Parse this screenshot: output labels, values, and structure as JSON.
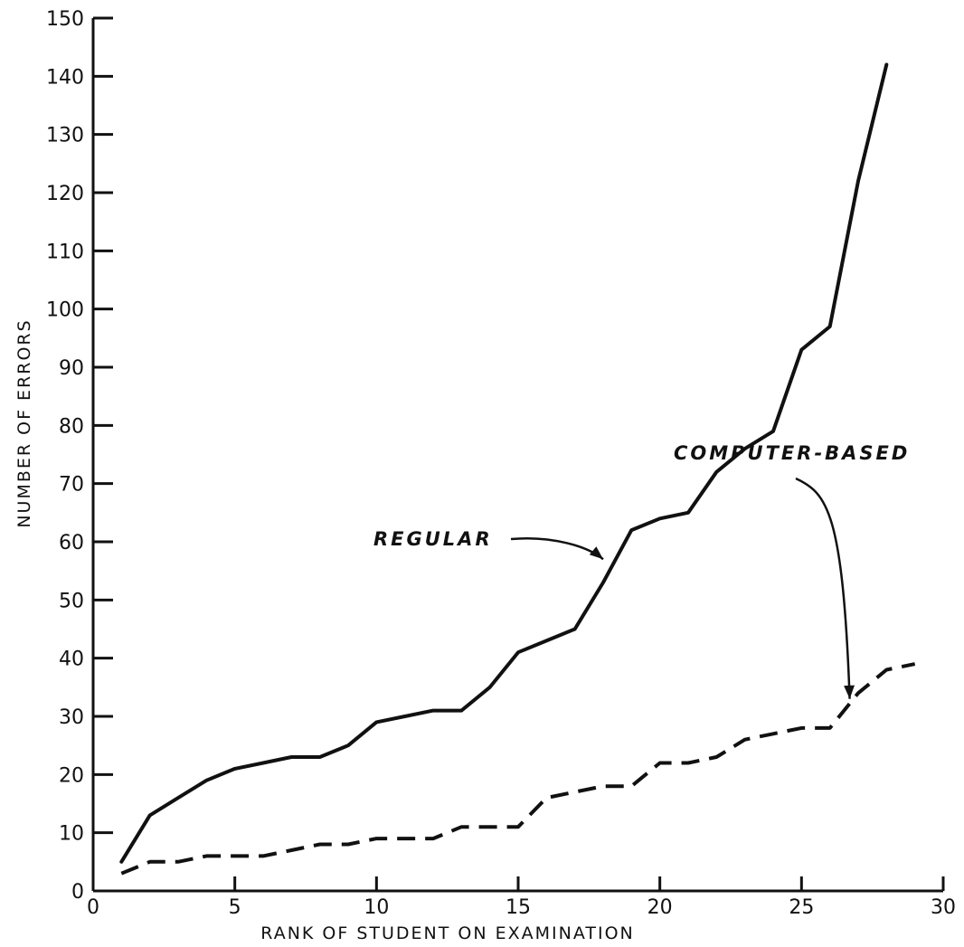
{
  "chart_data": {
    "type": "line",
    "title": "",
    "xlabel": "RANK OF STUDENT ON EXAMINATION",
    "ylabel": "NUMBER OF ERRORS",
    "xlim": [
      0,
      30
    ],
    "ylim": [
      0,
      150
    ],
    "xticks": [
      0,
      5,
      10,
      15,
      20,
      25,
      30
    ],
    "yticks": [
      0,
      10,
      20,
      30,
      40,
      50,
      60,
      70,
      80,
      90,
      100,
      110,
      120,
      130,
      140,
      150
    ],
    "grid": false,
    "legend": "none (series labeled with arrows)",
    "series": [
      {
        "name": "REGULAR",
        "style": "solid",
        "x": [
          1,
          2,
          3,
          4,
          5,
          6,
          7,
          8,
          9,
          10,
          11,
          12,
          13,
          14,
          15,
          16,
          17,
          18,
          19,
          20,
          21,
          22,
          23,
          24,
          25,
          26,
          27,
          28
        ],
        "values": [
          5,
          13,
          16,
          19,
          21,
          22,
          23,
          23,
          25,
          29,
          30,
          31,
          31,
          35,
          41,
          43,
          45,
          53,
          62,
          64,
          65,
          72,
          76,
          79,
          93,
          97,
          122,
          142
        ]
      },
      {
        "name": "COMPUTER-BASED",
        "style": "dashed",
        "x": [
          1,
          2,
          3,
          4,
          5,
          6,
          7,
          8,
          9,
          10,
          11,
          12,
          13,
          14,
          15,
          16,
          17,
          18,
          19,
          20,
          21,
          22,
          23,
          24,
          25,
          26,
          27,
          28,
          29
        ],
        "values": [
          3,
          5,
          5,
          6,
          6,
          6,
          7,
          8,
          8,
          9,
          9,
          9,
          11,
          11,
          11,
          16,
          17,
          18,
          18,
          22,
          22,
          23,
          26,
          27,
          28,
          28,
          34,
          38,
          39
        ]
      }
    ],
    "annotations": [
      {
        "text": "REGULAR",
        "points_to_x": 18,
        "points_to_y": 57
      },
      {
        "text": "COMPUTER-BASED",
        "points_to_x": 26.7,
        "points_to_y": 33
      }
    ],
    "colors": {
      "line": "#111111",
      "background": "#ffffff"
    }
  }
}
